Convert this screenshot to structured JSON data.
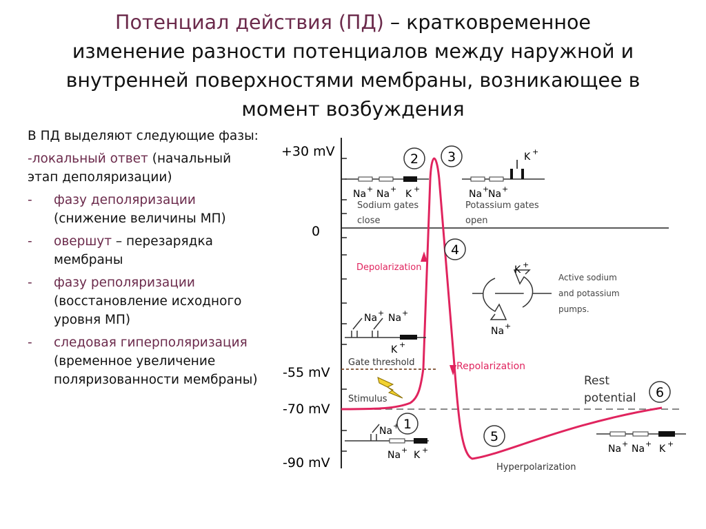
{
  "title": {
    "term": "Потенциал действия (ПД)",
    "line1_rest": " – кратковременное",
    "line2": "изменение разности потенциалов между наружной и",
    "line3": "внутренней поверхностями мембраны, возникающее в",
    "line4": "момент возбуждения"
  },
  "phases": {
    "intro": "В ПД выделяют следующие фазы:",
    "items": [
      {
        "dash": "-",
        "term": "локальный ответ",
        "rest": " (начальный этап деполяризации)"
      },
      {
        "dash": "-",
        "term": "фазу деполяризации",
        "rest": " (снижение величины МП)"
      },
      {
        "dash": "-",
        "term": "овершут",
        "rest": " – перезарядка мембраны"
      },
      {
        "dash": "-",
        "term": "фазу реполяризации",
        "rest": " (восстановление исходного уровня МП)"
      },
      {
        "dash": "-",
        "term": "следовая гиперполяризация",
        "rest": " (временное увеличение поляризованности мембраны)"
      }
    ]
  },
  "diagram": {
    "y_labels": {
      "p30": "+30 mV",
      "zero": "0",
      "m55": "-55 mV",
      "m70": "-70 mV",
      "m90": "-90 mV"
    },
    "labels": {
      "depolarization": "Depolarization",
      "repolarization": "Repolarization",
      "gate_threshold": "Gate threshold",
      "stimulus": "Stimulus",
      "hyperpolarization": "Hyperpolarization",
      "rest_line1": "Rest",
      "rest_line2": "potential",
      "sodium_gates_line1": "Sodium gates",
      "sodium_gates_line2": "close",
      "potassium_gates_line1": "Potassium gates",
      "potassium_gates_line2": "open",
      "pumps_line1": "Active sodium",
      "pumps_line2": "and potassium",
      "pumps_line3": "pumps."
    },
    "ions": {
      "na": "Na",
      "k": "K",
      "plus": "+"
    },
    "steps": [
      "1",
      "2",
      "3",
      "4",
      "5",
      "6"
    ],
    "colors": {
      "curve": "#e0245e",
      "threshold": "#7a4a2a",
      "accent_text": "#6b2a4b",
      "stimulus": "#f2d230"
    }
  }
}
